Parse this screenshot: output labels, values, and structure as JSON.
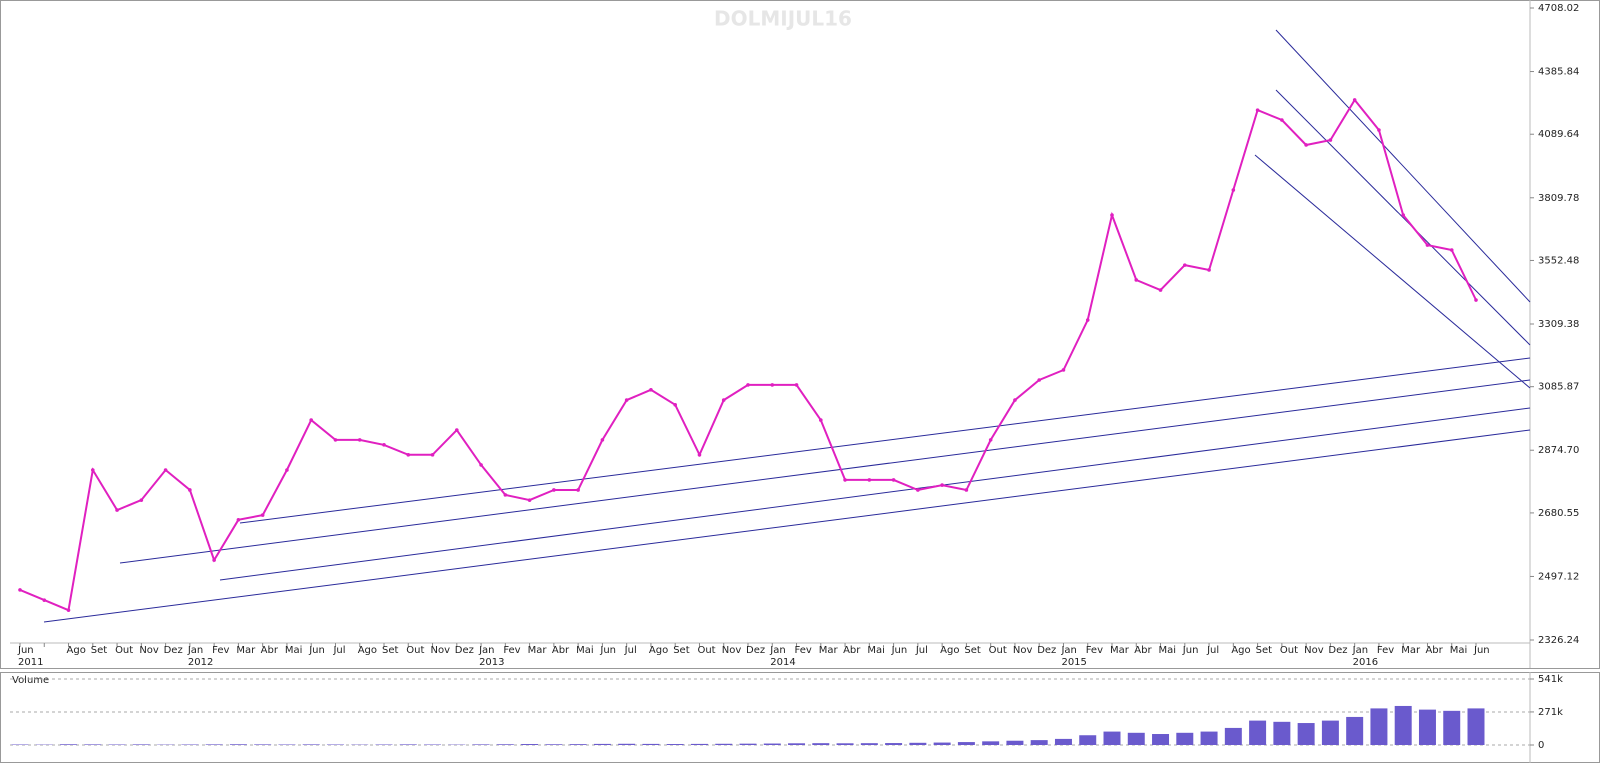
{
  "chart_data": [
    {
      "type": "line",
      "title": "DOLMIJUL16",
      "log_scale": true,
      "grid": false,
      "categories": [
        "Jun",
        null,
        "Ago",
        "Set",
        "Out",
        "Nov",
        "Dez",
        "Jan",
        "Fev",
        "Mar",
        "Abr",
        "Mai",
        "Jun",
        "Jul",
        "Ago",
        "Set",
        "Out",
        "Nov",
        "Dez",
        "Jan",
        "Fev",
        "Mar",
        "Abr",
        "Mai",
        "Jun",
        "Jul",
        "Ago",
        "Set",
        "Out",
        "Nov",
        "Dez",
        "Jan",
        "Fev",
        "Mar",
        "Abr",
        "Mai",
        "Jun",
        "Jul",
        "Ago",
        "Set",
        "Out",
        "Nov",
        "Dez",
        "Jan",
        "Fev",
        "Mar",
        "Abr",
        "Mai",
        "Jun",
        "Jul",
        "Ago",
        "Set",
        "Out",
        "Nov",
        "Dez",
        "Jan",
        "Fev",
        "Mar",
        "Abr",
        "Mai",
        "Jun"
      ],
      "years": [
        "2011",
        null,
        null,
        null,
        null,
        null,
        null,
        "2012",
        null,
        null,
        null,
        null,
        null,
        null,
        null,
        null,
        null,
        null,
        null,
        "2013",
        null,
        null,
        null,
        null,
        null,
        null,
        null,
        null,
        null,
        null,
        null,
        "2014",
        null,
        null,
        null,
        null,
        null,
        null,
        null,
        null,
        null,
        null,
        null,
        "2015",
        null,
        null,
        null,
        null,
        null,
        null,
        null,
        null,
        null,
        null,
        null,
        "2016",
        null,
        null,
        null,
        null,
        null
      ],
      "series": [
        {
          "color": "#e020c0",
          "values": [
            2460,
            2432,
            2405,
            2812,
            2689,
            2719,
            2812,
            2750,
            2543,
            2660,
            2674,
            2812,
            2973,
            2908,
            2908,
            2892,
            2860,
            2860,
            2940,
            2828,
            2735,
            2719,
            2750,
            2750,
            2908,
            3040,
            3075,
            3024,
            2860,
            3040,
            3092,
            3092,
            3092,
            2973,
            2781,
            2781,
            2781,
            2750,
            2765,
            2750,
            2908,
            3040,
            3109,
            3144,
            3324,
            3737,
            3476,
            3437,
            3534,
            3515,
            3843,
            4201,
            4155,
            4041,
            4063,
            4249,
            4109,
            3737,
            3614,
            3594,
            3399
          ]
        }
      ],
      "ylim": [
        2326.24,
        4708.02
      ],
      "yticks": [
        4708.02,
        4385.84,
        4089.64,
        3809.78,
        3552.48,
        3309.38,
        3085.87,
        {
          "value": 2874.7,
          "label": "2874.70"
        },
        2680.55,
        2497.12,
        2326.24
      ]
    },
    {
      "type": "bar",
      "title": "Volume",
      "grid": true,
      "series": [
        {
          "color": "#6a5acd",
          "values": [
            4000,
            3000,
            6000,
            5000,
            4000,
            5000,
            3000,
            4000,
            5000,
            6000,
            5000,
            4000,
            5000,
            4000,
            3000,
            4000,
            5000,
            4000,
            3000,
            5000,
            6000,
            8000,
            6000,
            7000,
            9000,
            10000,
            9000,
            8000,
            9000,
            10000,
            11000,
            12000,
            14000,
            15000,
            14000,
            15000,
            16000,
            18000,
            20000,
            24000,
            30000,
            35000,
            40000,
            50000,
            80000,
            110000,
            100000,
            90000,
            100000,
            110000,
            140000,
            200000,
            190000,
            180000,
            200000,
            230000,
            300000,
            320000,
            290000,
            280000,
            300000
          ]
        }
      ],
      "ylim": [
        0,
        541000
      ],
      "yticks": [
        0,
        {
          "value": 271000,
          "label": "271k"
        },
        {
          "value": 541000,
          "label": "541k"
        }
      ]
    }
  ]
}
